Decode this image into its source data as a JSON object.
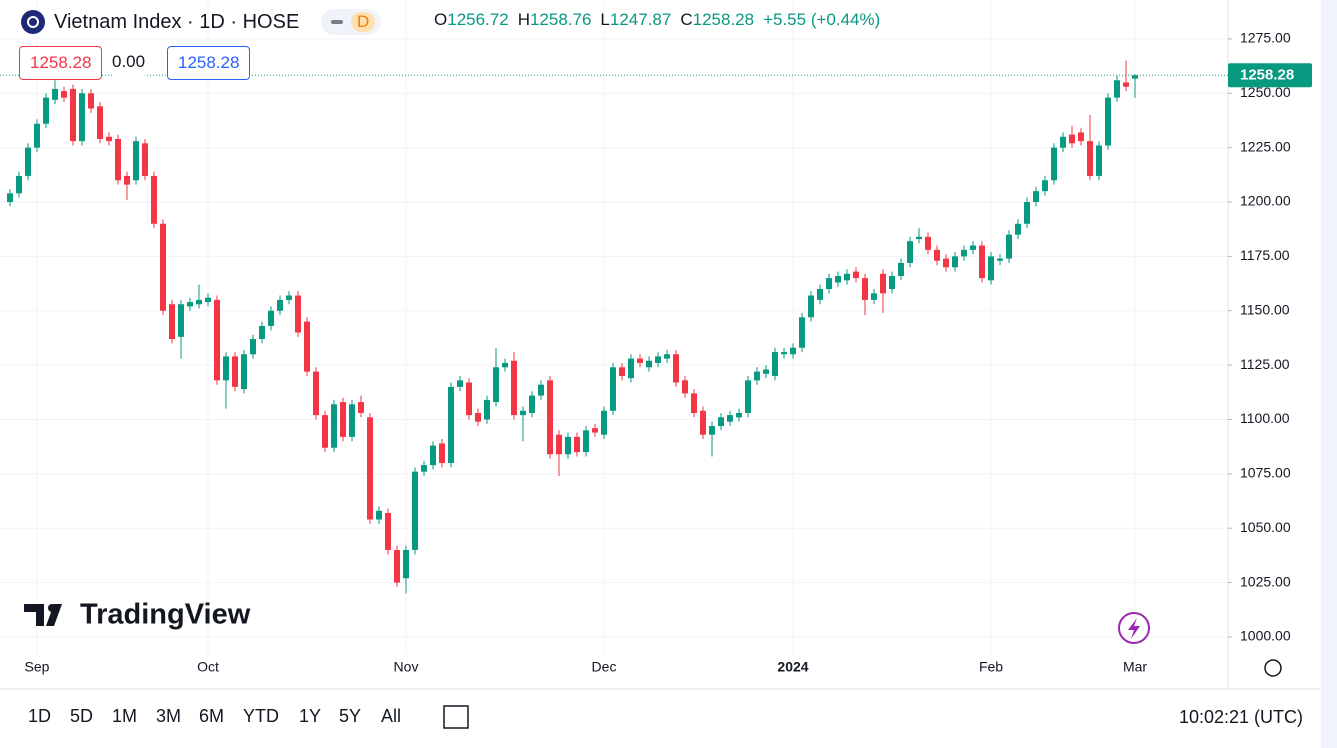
{
  "header": {
    "title": "Vietnam Index · 1D · HOSE",
    "badge": "D",
    "o_label": "O",
    "h_label": "H",
    "l_label": "L",
    "c_label": "C",
    "change": "+5.55 (+0.44%)",
    "spread": "0.00"
  },
  "chart_data": {
    "type": "candlestick",
    "categories": [
      null,
      null,
      null,
      "Sep",
      null,
      null,
      null,
      null,
      null,
      null,
      null,
      null,
      null,
      null,
      null,
      null,
      null,
      null,
      null,
      null,
      null,
      null,
      "Oct",
      null,
      null,
      null,
      null,
      null,
      null,
      null,
      null,
      null,
      null,
      null,
      null,
      null,
      null,
      null,
      null,
      null,
      null,
      null,
      null,
      null,
      "Nov",
      null,
      null,
      null,
      null,
      null,
      null,
      null,
      null,
      null,
      null,
      null,
      null,
      null,
      null,
      null,
      null,
      null,
      null,
      null,
      null,
      null,
      "Dec",
      null,
      null,
      null,
      null,
      null,
      null,
      null,
      null,
      null,
      null,
      null,
      null,
      null,
      null,
      null,
      null,
      null,
      null,
      null,
      null,
      "2024",
      null,
      null,
      null,
      null,
      null,
      null,
      null,
      null,
      null,
      null,
      null,
      null,
      null,
      null,
      null,
      null,
      null,
      null,
      null,
      null,
      null,
      "Feb",
      null,
      null,
      null,
      null,
      null,
      null,
      null,
      null,
      null,
      null,
      null,
      null,
      null,
      null,
      null,
      "Mar"
    ],
    "open": [
      1200,
      1204,
      1212,
      1225,
      1236,
      1247,
      1251,
      1252,
      1228,
      1250,
      1244,
      1230,
      1229,
      1212,
      1210,
      1227,
      1212,
      1190,
      1153,
      1138,
      1152,
      1153,
      1154,
      1155,
      1118,
      1129,
      1114,
      1130,
      1137,
      1143,
      1150,
      1155,
      1157,
      1145,
      1122,
      1102,
      1087,
      1108,
      1092,
      1108,
      1101,
      1054,
      1057,
      1040,
      1027,
      1040,
      1076,
      1079,
      1089,
      1080,
      1115,
      1117,
      1103,
      1100,
      1108,
      1124,
      1127,
      1102,
      1103,
      1111,
      1118,
      1093,
      1084,
      1092,
      1085,
      1096,
      1093,
      1104,
      1124,
      1119,
      1128,
      1124,
      1126,
      1128,
      1130,
      1118,
      1112,
      1104,
      1093,
      1097,
      1099,
      1101,
      1103,
      1118,
      1121,
      1120,
      1130,
      1130,
      1133,
      1147,
      1155,
      1160,
      1163,
      1164,
      1168,
      1165,
      1155,
      1167,
      1160,
      1166,
      1172,
      1183,
      1184,
      1178,
      1174,
      1170,
      1175,
      1178,
      1180,
      1164,
      1173,
      1174,
      1185,
      1190,
      1200,
      1205,
      1210,
      1225,
      1231,
      1232,
      1228,
      1212,
      1226,
      1248,
      1255,
      1256.72
    ],
    "high": [
      1206,
      1214,
      1227,
      1238,
      1250,
      1256,
      1253,
      1254,
      1252,
      1252,
      1246,
      1232,
      1231,
      1214,
      1230,
      1229,
      1214,
      1192,
      1155,
      1155,
      1156,
      1162,
      1158,
      1157,
      1131,
      1131,
      1132,
      1139,
      1145,
      1152,
      1157,
      1159,
      1159,
      1147,
      1124,
      1104,
      1109,
      1110,
      1109,
      1111,
      1103,
      1060,
      1059,
      1042,
      1042,
      1078,
      1081,
      1090,
      1091,
      1117,
      1120,
      1119,
      1105,
      1111,
      1133,
      1128,
      1131,
      1106,
      1113,
      1118,
      1120,
      1095,
      1094,
      1094,
      1097,
      1098,
      1106,
      1126,
      1126,
      1130,
      1130,
      1129,
      1131,
      1132,
      1132,
      1120,
      1114,
      1106,
      1099,
      1103,
      1104,
      1105,
      1120,
      1124,
      1125,
      1133,
      1133,
      1135,
      1149,
      1159,
      1162,
      1167,
      1168,
      1169,
      1170,
      1167,
      1160,
      1169,
      1168,
      1174,
      1184,
      1188,
      1186,
      1180,
      1176,
      1177,
      1180,
      1182,
      1182,
      1177,
      1176,
      1187,
      1192,
      1202,
      1207,
      1212,
      1227,
      1232,
      1235,
      1234,
      1240,
      1228,
      1250,
      1258,
      1265,
      1258.76
    ],
    "low": [
      1198,
      1202,
      1210,
      1223,
      1234,
      1245,
      1246,
      1226,
      1226,
      1241,
      1227,
      1226,
      1208,
      1201,
      1208,
      1210,
      1188,
      1148,
      1135,
      1128,
      1150,
      1151,
      1152,
      1116,
      1105,
      1113,
      1112,
      1128,
      1135,
      1141,
      1148,
      1153,
      1138,
      1120,
      1100,
      1085,
      1085,
      1090,
      1090,
      1101,
      1052,
      1052,
      1038,
      1023,
      1020,
      1038,
      1074,
      1077,
      1078,
      1078,
      1113,
      1100,
      1097,
      1098,
      1106,
      1122,
      1100,
      1090,
      1101,
      1109,
      1082,
      1074,
      1082,
      1083,
      1083,
      1092,
      1091,
      1102,
      1118,
      1117,
      1124,
      1122,
      1124,
      1126,
      1115,
      1110,
      1101,
      1091,
      1083,
      1095,
      1097,
      1099,
      1101,
      1116,
      1119,
      1118,
      1128,
      1128,
      1131,
      1145,
      1153,
      1158,
      1161,
      1162,
      1163,
      1148,
      1153,
      1149,
      1158,
      1164,
      1170,
      1181,
      1176,
      1171,
      1168,
      1168,
      1173,
      1176,
      1163,
      1162,
      1171,
      1172,
      1183,
      1188,
      1198,
      1203,
      1208,
      1223,
      1225,
      1226,
      1210,
      1210,
      1224,
      1246,
      1251,
      1247.87
    ],
    "close": [
      1204,
      1212,
      1225,
      1236,
      1248,
      1252,
      1248,
      1228,
      1250,
      1243,
      1229,
      1228,
      1210,
      1208,
      1228,
      1212,
      1190,
      1150,
      1137,
      1153,
      1154,
      1155,
      1156,
      1118,
      1129,
      1115,
      1130,
      1137,
      1143,
      1150,
      1155,
      1157,
      1140,
      1122,
      1102,
      1087,
      1107,
      1092,
      1107,
      1103,
      1054,
      1058,
      1040,
      1025,
      1040,
      1076,
      1079,
      1088,
      1080,
      1115,
      1118,
      1102,
      1099,
      1109,
      1124,
      1126,
      1102,
      1104,
      1111,
      1116,
      1084,
      1084,
      1092,
      1085,
      1095,
      1094,
      1104,
      1124,
      1120,
      1128,
      1126,
      1127,
      1129,
      1130,
      1117,
      1112,
      1103,
      1093,
      1097,
      1101,
      1102,
      1103,
      1118,
      1122,
      1123,
      1131,
      1131,
      1133,
      1147,
      1157,
      1160,
      1165,
      1166,
      1167,
      1165,
      1155,
      1158,
      1158,
      1166,
      1172,
      1182,
      1184,
      1178,
      1173,
      1170,
      1175,
      1178,
      1180,
      1165,
      1175,
      1174,
      1185,
      1190,
      1200,
      1205,
      1210,
      1225,
      1230,
      1227,
      1228,
      1212,
      1226,
      1248,
      1256,
      1253,
      1258.28
    ],
    "up_color": "#089981",
    "down_color": "#f23645",
    "ylim": [
      991.7,
      1292.9
    ],
    "yticks": [
      {
        "value": 1000,
        "label": "1000.00"
      },
      {
        "value": 1025,
        "label": "1025.00"
      },
      {
        "value": 1050,
        "label": "1050.00"
      },
      {
        "value": 1075,
        "label": "1075.00"
      },
      {
        "value": 1100,
        "label": "1100.00"
      },
      {
        "value": 1125,
        "label": "1125.00"
      },
      {
        "value": 1150,
        "label": "1150.00"
      },
      {
        "value": 1175,
        "label": "1175.00"
      },
      {
        "value": 1200,
        "label": "1200.00"
      },
      {
        "value": 1225,
        "label": "1225.00"
      },
      {
        "value": 1250,
        "label": "1250.00"
      },
      {
        "value": 1275,
        "label": "1275.00"
      }
    ],
    "grid": true
  },
  "logo": "TradingView",
  "ranges": [
    "1D",
    "5D",
    "1M",
    "3M",
    "6M",
    "YTD",
    "1Y",
    "5Y",
    "All"
  ],
  "clock": "10:02:21 (UTC)"
}
